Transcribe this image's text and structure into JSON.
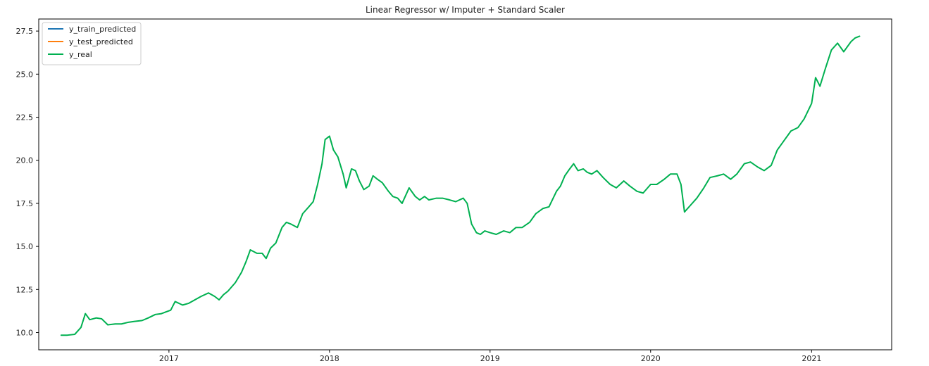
{
  "chart_data": {
    "type": "line",
    "title": "Linear Regressor w/ Imputer + Standard Scaler",
    "xlabel": "",
    "ylabel": "",
    "x_scale": "date",
    "xlim": [
      "2016-03-11",
      "2021-07-02"
    ],
    "ylim": [
      9.0,
      28.2
    ],
    "grid": false,
    "legend_position": "upper left",
    "x_ticks": [
      {
        "label": "2017",
        "date": "2017-01-01"
      },
      {
        "label": "2018",
        "date": "2018-01-01"
      },
      {
        "label": "2019",
        "date": "2019-01-01"
      },
      {
        "label": "2020",
        "date": "2020-01-01"
      },
      {
        "label": "2021",
        "date": "2021-01-01"
      }
    ],
    "y_ticks": [
      {
        "label": "10.0",
        "value": 10.0
      },
      {
        "label": "12.5",
        "value": 12.5
      },
      {
        "label": "15.0",
        "value": 15.0
      },
      {
        "label": "17.5",
        "value": 17.5
      },
      {
        "label": "20.0",
        "value": 20.0
      },
      {
        "label": "22.5",
        "value": 22.5
      },
      {
        "label": "25.0",
        "value": 25.0
      },
      {
        "label": "27.5",
        "value": 27.5
      }
    ],
    "series": [
      {
        "name": "y_train_predicted",
        "color": "#1f77b4",
        "x": [],
        "values": []
      },
      {
        "name": "y_test_predicted",
        "color": "#ff7f0e",
        "x": [],
        "values": []
      },
      {
        "name": "y_real",
        "color": "#00b050",
        "x": [
          "2016-05-01",
          "2016-05-15",
          "2016-06-01",
          "2016-06-15",
          "2016-06-25",
          "2016-07-05",
          "2016-07-20",
          "2016-08-01",
          "2016-08-15",
          "2016-09-01",
          "2016-09-15",
          "2016-10-01",
          "2016-10-15",
          "2016-11-01",
          "2016-11-15",
          "2016-12-01",
          "2016-12-15",
          "2016-12-25",
          "2017-01-05",
          "2017-01-15",
          "2017-02-01",
          "2017-02-15",
          "2017-03-01",
          "2017-03-15",
          "2017-04-01",
          "2017-04-15",
          "2017-04-25",
          "2017-05-05",
          "2017-05-15",
          "2017-06-01",
          "2017-06-15",
          "2017-06-25",
          "2017-07-05",
          "2017-07-20",
          "2017-08-01",
          "2017-08-10",
          "2017-08-20",
          "2017-09-01",
          "2017-09-15",
          "2017-09-25",
          "2017-10-05",
          "2017-10-20",
          "2017-11-01",
          "2017-11-15",
          "2017-11-25",
          "2017-12-05",
          "2017-12-15",
          "2017-12-22",
          "2018-01-01",
          "2018-01-10",
          "2018-01-20",
          "2018-02-01",
          "2018-02-08",
          "2018-02-20",
          "2018-03-01",
          "2018-03-10",
          "2018-03-20",
          "2018-04-01",
          "2018-04-10",
          "2018-04-20",
          "2018-05-01",
          "2018-05-15",
          "2018-05-25",
          "2018-06-05",
          "2018-06-15",
          "2018-07-01",
          "2018-07-15",
          "2018-07-25",
          "2018-08-05",
          "2018-08-15",
          "2018-09-01",
          "2018-09-15",
          "2018-10-01",
          "2018-10-15",
          "2018-11-01",
          "2018-11-10",
          "2018-11-20",
          "2018-12-01",
          "2018-12-10",
          "2018-12-20",
          "2019-01-01",
          "2019-01-15",
          "2019-02-01",
          "2019-02-15",
          "2019-03-01",
          "2019-03-15",
          "2019-04-01",
          "2019-04-15",
          "2019-05-01",
          "2019-05-15",
          "2019-06-01",
          "2019-06-10",
          "2019-06-20",
          "2019-07-01",
          "2019-07-10",
          "2019-07-20",
          "2019-08-01",
          "2019-08-10",
          "2019-08-20",
          "2019-09-01",
          "2019-09-15",
          "2019-10-01",
          "2019-10-15",
          "2019-11-01",
          "2019-11-15",
          "2019-12-01",
          "2019-12-15",
          "2020-01-01",
          "2020-01-15",
          "2020-02-01",
          "2020-02-15",
          "2020-03-01",
          "2020-03-10",
          "2020-03-18",
          "2020-04-01",
          "2020-04-15",
          "2020-05-01",
          "2020-05-15",
          "2020-06-01",
          "2020-06-15",
          "2020-07-01",
          "2020-07-15",
          "2020-08-01",
          "2020-08-15",
          "2020-09-01",
          "2020-09-15",
          "2020-10-01",
          "2020-10-15",
          "2020-11-01",
          "2020-11-15",
          "2020-12-01",
          "2020-12-15",
          "2021-01-01",
          "2021-01-10",
          "2021-01-20",
          "2021-02-01",
          "2021-02-15",
          "2021-03-01",
          "2021-03-15",
          "2021-04-01",
          "2021-04-10",
          "2021-04-20"
        ],
        "values": [
          9.85,
          9.85,
          9.9,
          10.3,
          11.1,
          10.75,
          10.85,
          10.8,
          10.45,
          10.5,
          10.5,
          10.6,
          10.65,
          10.7,
          10.85,
          11.05,
          11.1,
          11.2,
          11.3,
          11.8,
          11.6,
          11.7,
          11.9,
          12.1,
          12.3,
          12.1,
          11.9,
          12.2,
          12.4,
          12.9,
          13.5,
          14.1,
          14.8,
          14.6,
          14.6,
          14.3,
          14.9,
          15.2,
          16.1,
          16.4,
          16.3,
          16.1,
          16.9,
          17.3,
          17.6,
          18.6,
          19.8,
          21.2,
          21.4,
          20.6,
          20.2,
          19.2,
          18.4,
          19.5,
          19.4,
          18.8,
          18.3,
          18.5,
          19.1,
          18.9,
          18.7,
          18.2,
          17.9,
          17.8,
          17.5,
          18.4,
          17.9,
          17.7,
          17.9,
          17.7,
          17.8,
          17.8,
          17.7,
          17.6,
          17.8,
          17.5,
          16.3,
          15.8,
          15.7,
          15.9,
          15.8,
          15.7,
          15.9,
          15.8,
          16.1,
          16.1,
          16.4,
          16.9,
          17.2,
          17.3,
          18.2,
          18.5,
          19.1,
          19.5,
          19.8,
          19.4,
          19.5,
          19.3,
          19.2,
          19.4,
          19.0,
          18.6,
          18.4,
          18.8,
          18.5,
          18.2,
          18.1,
          18.6,
          18.6,
          18.9,
          19.2,
          19.2,
          18.6,
          17.0,
          17.4,
          17.8,
          18.4,
          19.0,
          19.1,
          19.2,
          18.9,
          19.2,
          19.8,
          19.9,
          19.6,
          19.4,
          19.7,
          20.6,
          21.2,
          21.7,
          21.9,
          22.4,
          23.3,
          24.8,
          24.3,
          25.3,
          26.4,
          26.8,
          26.3,
          26.9,
          27.1,
          27.2
        ]
      }
    ]
  }
}
